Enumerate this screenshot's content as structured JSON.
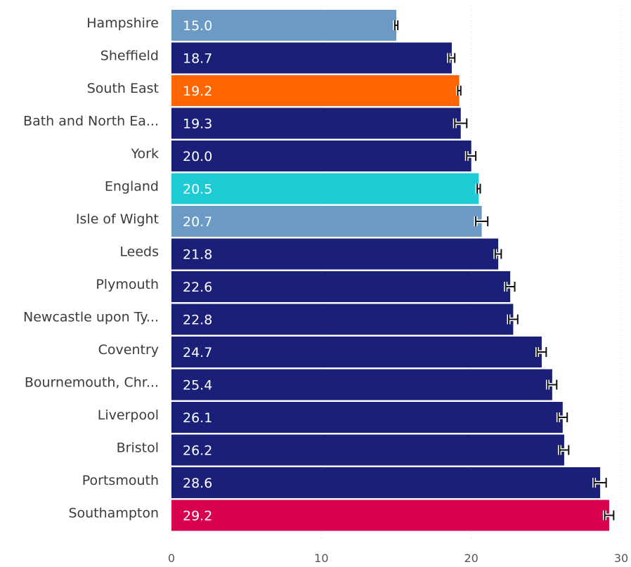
{
  "chart_data": {
    "type": "bar",
    "orientation": "horizontal",
    "title": "",
    "xlabel": "",
    "ylabel": "",
    "xlim": [
      0,
      30
    ],
    "xticks": [
      0,
      10,
      20,
      30
    ],
    "grid": "vertical dotted",
    "data_labels": "inside-bar-start",
    "error_bars": true,
    "categories": [
      "Hampshire",
      "Sheffield",
      "South East",
      "Bath and North Ea...",
      "York",
      "England",
      "Isle of Wight",
      "Leeds",
      "Plymouth",
      "Newcastle upon Ty...",
      "Coventry",
      "Bournemouth, Chr...",
      "Liverpool",
      "Bristol",
      "Portsmouth",
      "Southampton"
    ],
    "values": [
      15.0,
      18.7,
      19.2,
      19.3,
      20.0,
      20.5,
      20.7,
      21.8,
      22.6,
      22.8,
      24.7,
      25.4,
      26.1,
      26.2,
      28.6,
      29.2
    ],
    "value_labels": [
      "15.0",
      "18.7",
      "19.2",
      "19.3",
      "20.0",
      "20.5",
      "20.7",
      "21.8",
      "22.6",
      "22.8",
      "24.7",
      "25.4",
      "26.1",
      "26.2",
      "28.6",
      "29.2"
    ],
    "error_low": [
      14.9,
      18.5,
      19.1,
      18.9,
      19.7,
      20.4,
      20.3,
      21.6,
      22.3,
      22.5,
      24.4,
      25.1,
      25.8,
      25.9,
      28.2,
      28.9
    ],
    "error_high": [
      15.1,
      18.9,
      19.3,
      19.7,
      20.3,
      20.6,
      21.1,
      22.0,
      22.9,
      23.1,
      25.0,
      25.7,
      26.4,
      26.5,
      29.0,
      29.5
    ],
    "colors": [
      "#6b9bc5",
      "#1a1f77",
      "#ff6600",
      "#1a1f77",
      "#1a1f77",
      "#1ecad3",
      "#6b9bc5",
      "#1a1f77",
      "#1a1f77",
      "#1a1f77",
      "#1a1f77",
      "#1a1f77",
      "#1a1f77",
      "#1a1f77",
      "#1a1f77",
      "#d6004f"
    ]
  }
}
